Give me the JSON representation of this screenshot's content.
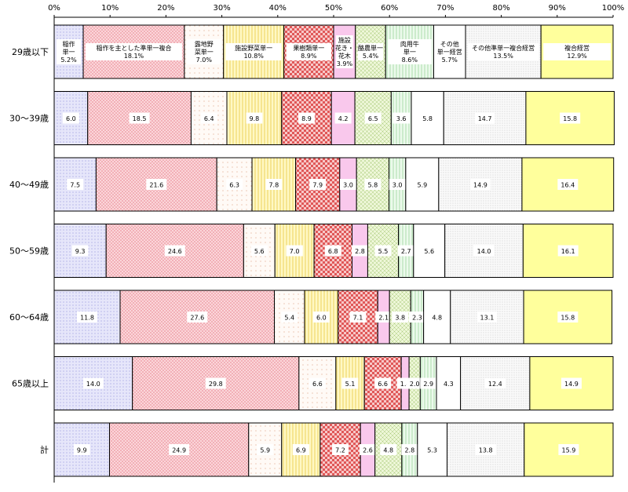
{
  "chart_data": {
    "type": "bar",
    "orientation": "horizontal",
    "stacked": "percent",
    "xlim": [
      0,
      100
    ],
    "x_ticks": [
      "0%",
      "10%",
      "20%",
      "30%",
      "40%",
      "50%",
      "60%",
      "70%",
      "80%",
      "90%",
      "100%"
    ],
    "grid": false,
    "legend": "inline-first-row",
    "categories": [
      "29歳以下",
      "30～39歳",
      "40～49歳",
      "50～59歳",
      "60～64歳",
      "65歳以上",
      "計"
    ],
    "series": [
      {
        "name": "稲作単一",
        "label_lines": [
          "稲作",
          "単一"
        ],
        "color": "#e6e6fa",
        "values": [
          5.2,
          6.0,
          7.5,
          9.3,
          11.8,
          14.0,
          9.9
        ]
      },
      {
        "name": "稲作を主とした準単一複合",
        "label_lines": [
          "稲作を主とした準単一複合"
        ],
        "color": "#f8c6cc",
        "values": [
          18.1,
          18.5,
          21.6,
          24.6,
          27.6,
          29.8,
          24.9
        ]
      },
      {
        "name": "露地野菜単一",
        "label_lines": [
          "露地野",
          "菜単一"
        ],
        "color": "#fff2ea",
        "values": [
          7.0,
          6.4,
          6.3,
          5.6,
          5.4,
          6.6,
          5.9
        ]
      },
      {
        "name": "施設野菜単一",
        "label_lines": [
          "施設野菜単一"
        ],
        "color": "#fff7b0",
        "values": [
          10.8,
          9.8,
          7.8,
          7.0,
          6.0,
          5.1,
          6.9
        ]
      },
      {
        "name": "果樹類単一",
        "label_lines": [
          "果樹類単一"
        ],
        "color": "#f4b3b3",
        "values": [
          8.9,
          8.9,
          7.9,
          6.8,
          7.1,
          6.6,
          7.2
        ]
      },
      {
        "name": "施設花き・花木",
        "label_lines": [
          "施設",
          "花き・",
          "花木"
        ],
        "color": "#f9c8ec",
        "values": [
          3.9,
          4.2,
          3.0,
          2.8,
          2.1,
          1.4,
          2.6
        ]
      },
      {
        "name": "酪農単一",
        "label_lines": [
          "酪農単一"
        ],
        "color": "#e6f2c8",
        "values": [
          5.4,
          6.5,
          5.8,
          5.5,
          3.8,
          2.0,
          4.8
        ]
      },
      {
        "name": "肉用牛単一",
        "label_lines": [
          "肉用牛",
          "単一"
        ],
        "color": "#dff6df",
        "values": [
          8.6,
          3.6,
          3.0,
          2.7,
          2.3,
          2.9,
          2.8
        ]
      },
      {
        "name": "その他単一経営",
        "label_lines": [
          "その他",
          "単一経営"
        ],
        "color": "#ffffff",
        "values": [
          5.7,
          5.8,
          5.9,
          5.6,
          4.8,
          4.3,
          5.3
        ]
      },
      {
        "name": "その他準単一複合経営",
        "label_lines": [
          "その他準単一複合経営"
        ],
        "color": "#f6f6f6",
        "values": [
          13.5,
          14.7,
          14.9,
          14.0,
          13.1,
          12.4,
          13.8
        ]
      },
      {
        "name": "複合経営",
        "label_lines": [
          "複合経営"
        ],
        "color": "#ffff9c",
        "values": [
          12.9,
          15.8,
          16.4,
          16.1,
          15.8,
          14.9,
          15.9
        ]
      }
    ]
  }
}
